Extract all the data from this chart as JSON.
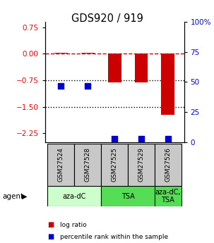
{
  "title": "GDS920 / 919",
  "samples": [
    "GSM27524",
    "GSM27528",
    "GSM27525",
    "GSM27529",
    "GSM27526"
  ],
  "log_ratios": [
    0.02,
    0.02,
    -0.82,
    -0.82,
    -1.72
  ],
  "percentile_ranks": [
    47,
    47,
    3,
    3,
    3
  ],
  "ylim_left": [
    -2.5,
    0.9
  ],
  "ylim_right": [
    0,
    100
  ],
  "yticks_left": [
    0.75,
    0,
    -0.75,
    -1.5,
    -2.25
  ],
  "yticks_right": [
    100,
    75,
    50,
    25,
    0
  ],
  "hline0": 0,
  "hlines_dotted": [
    -0.75,
    -1.5
  ],
  "agent_groups": [
    {
      "label": "aza-dC",
      "start": 0,
      "end": 2,
      "color": "#ccffcc"
    },
    {
      "label": "TSA",
      "start": 2,
      "end": 4,
      "color": "#55dd55"
    },
    {
      "label": "aza-dC,\nTSA",
      "start": 4,
      "end": 5,
      "color": "#55dd55"
    }
  ],
  "bar_color": "#cc0000",
  "dot_color": "#0000cc",
  "hline0_color": "#cc0000",
  "hline_other_color": "#000000",
  "legend_items": [
    {
      "color": "#cc0000",
      "label": "log ratio"
    },
    {
      "color": "#0000cc",
      "label": "percentile rank within the sample"
    }
  ],
  "agent_label": "agent",
  "bar_width": 0.5,
  "dot_size": 35,
  "sample_bg": "#c8c8c8"
}
